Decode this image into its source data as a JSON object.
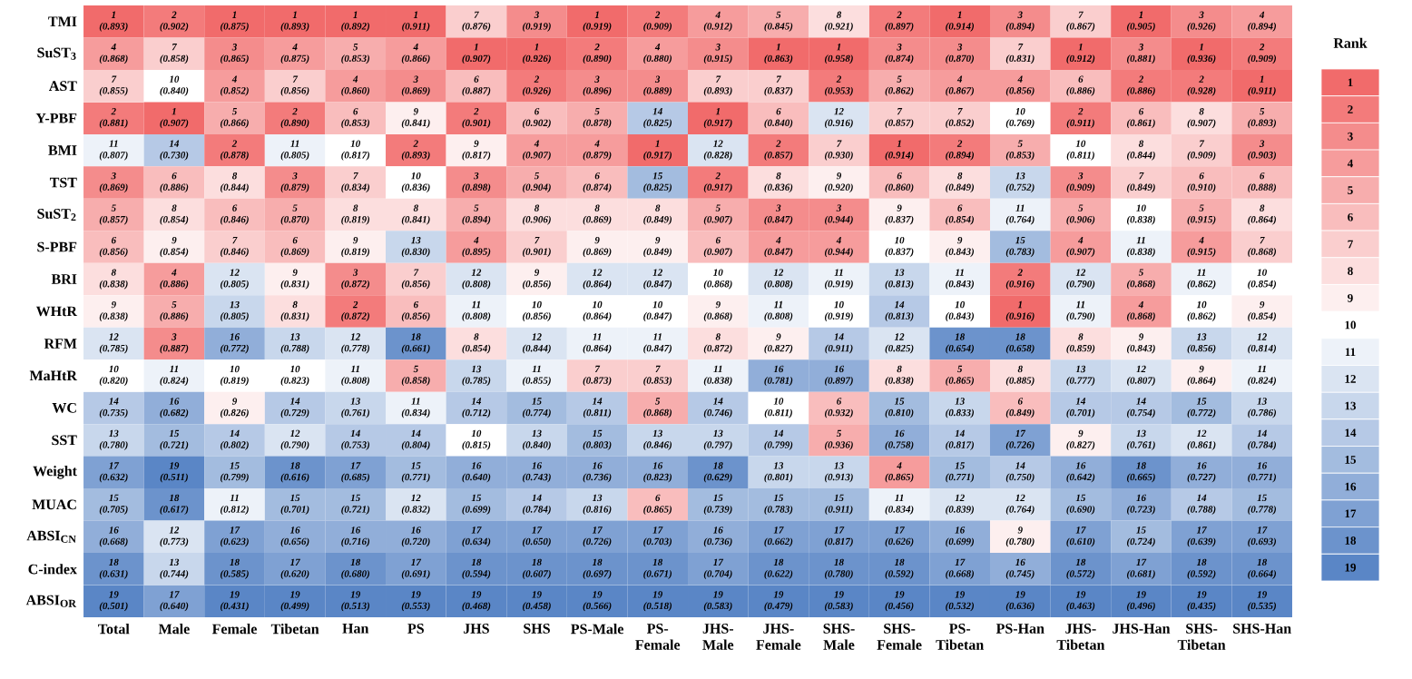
{
  "chart_data": {
    "type": "heatmap",
    "clabel": "Rank",
    "categories": [
      "Total",
      "Male",
      "Female",
      "Tibetan",
      "Han",
      "PS",
      "JHS",
      "SHS",
      "PS-Male",
      "PS-Female",
      "JHS-Male",
      "JHS-Female",
      "SHS-Male",
      "SHS-Female",
      "PS-Tibetan",
      "PS-Han",
      "JHS-Tibetan",
      "JHS-Han",
      "SHS-Tibetan",
      "SHS-Han"
    ],
    "y_categories": [
      "TMI",
      "SuST$_{3}$",
      "AST",
      "Y-PBF",
      "BMI",
      "TST",
      "SuST$_{2}$",
      "S-PBF",
      "BRI",
      "WHtR",
      "RFM",
      "MaHtR",
      "WC",
      "SST",
      "Weight",
      "MUAC",
      "ABSI$_{CN}$",
      "C-index",
      "ABSI$_{OR}$"
    ],
    "cells": [
      [
        1,
        2,
        1,
        1,
        1,
        1,
        7,
        3,
        1,
        2,
        4,
        5,
        8,
        2,
        1,
        3,
        7,
        1,
        3,
        4
      ],
      [
        4,
        7,
        3,
        4,
        5,
        4,
        1,
        1,
        2,
        4,
        3,
        1,
        1,
        3,
        3,
        7,
        1,
        3,
        1,
        2
      ],
      [
        7,
        10,
        4,
        7,
        4,
        3,
        6,
        2,
        3,
        3,
        7,
        7,
        2,
        5,
        4,
        4,
        6,
        2,
        2,
        1
      ],
      [
        2,
        1,
        5,
        2,
        6,
        9,
        2,
        6,
        5,
        14,
        1,
        6,
        12,
        7,
        7,
        10,
        2,
        6,
        8,
        5
      ],
      [
        11,
        14,
        2,
        11,
        10,
        2,
        9,
        4,
        4,
        1,
        12,
        2,
        7,
        1,
        2,
        5,
        10,
        8,
        7,
        3
      ],
      [
        3,
        6,
        8,
        3,
        7,
        10,
        3,
        5,
        6,
        15,
        2,
        8,
        9,
        6,
        8,
        13,
        3,
        7,
        6,
        6
      ],
      [
        5,
        8,
        6,
        5,
        8,
        8,
        5,
        8,
        8,
        8,
        5,
        3,
        3,
        9,
        6,
        11,
        5,
        10,
        5,
        8
      ],
      [
        6,
        9,
        7,
        6,
        9,
        13,
        4,
        7,
        9,
        9,
        6,
        4,
        4,
        10,
        9,
        15,
        4,
        11,
        4,
        7
      ],
      [
        8,
        4,
        12,
        9,
        3,
        7,
        12,
        9,
        12,
        12,
        10,
        12,
        11,
        13,
        11,
        2,
        12,
        5,
        11,
        10
      ],
      [
        9,
        5,
        13,
        8,
        2,
        6,
        11,
        10,
        10,
        10,
        9,
        11,
        10,
        14,
        10,
        1,
        11,
        4,
        10,
        9
      ],
      [
        12,
        3,
        16,
        13,
        12,
        18,
        8,
        12,
        11,
        11,
        8,
        9,
        14,
        12,
        18,
        18,
        8,
        9,
        13,
        12
      ],
      [
        10,
        11,
        10,
        10,
        11,
        5,
        13,
        11,
        7,
        7,
        11,
        16,
        16,
        8,
        5,
        8,
        13,
        12,
        9,
        11
      ],
      [
        14,
        16,
        9,
        14,
        13,
        11,
        14,
        15,
        14,
        5,
        14,
        10,
        6,
        15,
        13,
        6,
        14,
        14,
        15,
        13
      ],
      [
        13,
        15,
        14,
        12,
        14,
        14,
        10,
        13,
        15,
        13,
        13,
        14,
        5,
        16,
        14,
        17,
        9,
        13,
        12,
        14
      ],
      [
        17,
        19,
        15,
        18,
        17,
        15,
        16,
        16,
        16,
        16,
        18,
        13,
        13,
        4,
        15,
        14,
        16,
        18,
        16,
        16
      ],
      [
        15,
        18,
        11,
        15,
        15,
        12,
        15,
        14,
        13,
        6,
        15,
        15,
        15,
        11,
        12,
        12,
        15,
        16,
        14,
        15
      ],
      [
        16,
        12,
        17,
        16,
        16,
        16,
        17,
        17,
        17,
        17,
        16,
        17,
        17,
        17,
        16,
        9,
        17,
        15,
        17,
        17
      ],
      [
        18,
        13,
        18,
        17,
        18,
        17,
        18,
        18,
        18,
        18,
        17,
        18,
        18,
        18,
        17,
        16,
        18,
        17,
        18,
        18
      ],
      [
        19,
        17,
        19,
        19,
        19,
        19,
        19,
        19,
        19,
        19,
        19,
        19,
        19,
        19,
        19,
        19,
        19,
        19,
        19,
        19
      ]
    ],
    "cell_labels": [
      [
        "1 (0.893)",
        "2 (0.902)",
        "1 (0.875)",
        "1 (0.893)",
        "1 (0.892)",
        "1 (0.911)",
        "7 (0.876)",
        "3 (0.919)",
        "1 (0.919)",
        "2 (0.909)",
        "4 (0.912)",
        "5 (0.845)",
        "8 (0.921)",
        "2 (0.897)",
        "1 (0.914)",
        "3 (0.894)",
        "7 (0.867)",
        "1 (0.905)",
        "3 (0.926)",
        "4 (0.894)"
      ],
      [
        "4 (0.868)",
        "7 (0.858)",
        "3 (0.865)",
        "4 (0.875)",
        "5 (0.853)",
        "4 (0.866)",
        "1 (0.907)",
        "1 (0.926)",
        "2 (0.890)",
        "4 (0.880)",
        "3 (0.915)",
        "1 (0.863)",
        "1 (0.958)",
        "3 (0.874)",
        "3 (0.870)",
        "7 (0.831)",
        "1 (0.912)",
        "3 (0.881)",
        "1 (0.936)",
        "2 (0.909)"
      ],
      [
        "7 (0.855)",
        "10 (0.840)",
        "4 (0.852)",
        "7 (0.856)",
        "4 (0.860)",
        "3 (0.869)",
        "6 (0.887)",
        "2 (0.926)",
        "3 (0.896)",
        "3 (0.889)",
        "7 (0.893)",
        "7 (0.837)",
        "2 (0.953)",
        "5 (0.862)",
        "4 (0.867)",
        "4 (0.856)",
        "6 (0.886)",
        "2 (0.886)",
        "2 (0.928)",
        "1 (0.911)"
      ],
      [
        "2 (0.881)",
        "1 (0.907)",
        "5 (0.866)",
        "2 (0.890)",
        "6 (0.853)",
        "9 (0.841)",
        "2 (0.901)",
        "6 (0.902)",
        "5 (0.878)",
        "14 (0.825)",
        "1 (0.917)",
        "6 (0.840)",
        "12 (0.916)",
        "7 (0.857)",
        "7 (0.852)",
        "10 (0.769)",
        "2 (0.911)",
        "6 (0.861)",
        "8 (0.907)",
        "5 (0.893)"
      ],
      [
        "11 (0.807)",
        "14 (0.730)",
        "2 (0.878)",
        "11 (0.805)",
        "10 (0.817)",
        "2 (0.893)",
        "9 (0.817)",
        "4 (0.907)",
        "4 (0.879)",
        "1 (0.917)",
        "12 (0.828)",
        "2 (0.857)",
        "7 (0.930)",
        "1 (0.914)",
        "2 (0.894)",
        "5 (0.853)",
        "10 (0.811)",
        "8 (0.844)",
        "7 (0.909)",
        "3 (0.903)"
      ],
      [
        "3 (0.869)",
        "6 (0.886)",
        "8 (0.844)",
        "3 (0.879)",
        "7 (0.834)",
        "10 (0.836)",
        "3 (0.898)",
        "5 (0.904)",
        "6 (0.874)",
        "15 (0.825)",
        "2 (0.917)",
        "8 (0.836)",
        "9 (0.920)",
        "6 (0.860)",
        "8 (0.849)",
        "13 (0.752)",
        "3 (0.909)",
        "7 (0.849)",
        "6 (0.910)",
        "6 (0.888)"
      ],
      [
        "5 (0.857)",
        "8 (0.854)",
        "6 (0.846)",
        "5 (0.870)",
        "8 (0.819)",
        "8 (0.841)",
        "5 (0.894)",
        "8 (0.906)",
        "8 (0.869)",
        "8 (0.849)",
        "5 (0.907)",
        "3 (0.847)",
        "3 (0.944)",
        "9 (0.837)",
        "6 (0.854)",
        "11 (0.764)",
        "5 (0.906)",
        "10 (0.838)",
        "5 (0.915)",
        "8 (0.864)"
      ],
      [
        "6 (0.856)",
        "9 (0.854)",
        "7 (0.846)",
        "6 (0.869)",
        "9 (0.819)",
        "13 (0.830)",
        "4 (0.895)",
        "7 (0.901)",
        "9 (0.869)",
        "9 (0.849)",
        "6 (0.907)",
        "4 (0.847)",
        "4 (0.944)",
        "10 (0.837)",
        "9 (0.843)",
        "15 (0.783)",
        "4 (0.907)",
        "11 (0.838)",
        "4 (0.915)",
        "7 (0.868)"
      ],
      [
        "8 (0.838)",
        "4 (0.886)",
        "12 (0.805)",
        "9 (0.831)",
        "3 (0.872)",
        "7 (0.856)",
        "12 (0.808)",
        "9 (0.856)",
        "12 (0.864)",
        "12 (0.847)",
        "10 (0.868)",
        "12 (0.808)",
        "11 (0.919)",
        "13 (0.813)",
        "11 (0.843)",
        "2 (0.916)",
        "12 (0.790)",
        "5 (0.868)",
        "11 (0.862)",
        "10 (0.854)"
      ],
      [
        "9 (0.838)",
        "5 (0.886)",
        "13 (0.805)",
        "8 (0.831)",
        "2 (0.872)",
        "6 (0.856)",
        "11 (0.808)",
        "10 (0.856)",
        "10 (0.864)",
        "10 (0.847)",
        "9 (0.868)",
        "11 (0.808)",
        "10 (0.919)",
        "14 (0.813)",
        "10 (0.843)",
        "1 (0.916)",
        "11 (0.790)",
        "4 (0.868)",
        "10 (0.862)",
        "9 (0.854)"
      ],
      [
        "12 (0.785)",
        "3 (0.887)",
        "16 (0.772)",
        "13 (0.788)",
        "12 (0.778)",
        "18 (0.661)",
        "8 (0.854)",
        "12 (0.844)",
        "11 (0.864)",
        "11 (0.847)",
        "8 (0.872)",
        "9 (0.827)",
        "14 (0.911)",
        "12 (0.825)",
        "18 (0.654)",
        "18 (0.658)",
        "8 (0.859)",
        "9 (0.843)",
        "13 (0.856)",
        "12 (0.814)"
      ],
      [
        "10 (0.820)",
        "11 (0.824)",
        "10 (0.819)",
        "10 (0.823)",
        "11 (0.808)",
        "5 (0.858)",
        "13 (0.785)",
        "11 (0.855)",
        "7 (0.873)",
        "7 (0.853)",
        "11 (0.838)",
        "16 (0.781)",
        "16 (0.897)",
        "8 (0.838)",
        "5 (0.865)",
        "8 (0.885)",
        "13 (0.777)",
        "12 (0.807)",
        "9 (0.864)",
        "11 (0.824)"
      ],
      [
        "14 (0.735)",
        "16 (0.682)",
        "9 (0.826)",
        "14 (0.729)",
        "13 (0.761)",
        "11 (0.834)",
        "14 (0.712)",
        "15 (0.774)",
        "14 (0.811)",
        "5 (0.868)",
        "14 (0.746)",
        "10 (0.811)",
        "6 (0.932)",
        "15 (0.810)",
        "13 (0.833)",
        "6 (0.849)",
        "14 (0.701)",
        "14 (0.754)",
        "15 (0.772)",
        "13 (0.786)"
      ],
      [
        "13 (0.780)",
        "15 (0.721)",
        "14 (0.802)",
        "12 (0.790)",
        "14 (0.753)",
        "14 (0.804)",
        "10 (0.815)",
        "13 (0.840)",
        "15 (0.803)",
        "13 (0.846)",
        "13 (0.797)",
        "14 (0.799)",
        "5 (0.936)",
        "16 (0.758)",
        "14 (0.817)",
        "17 (0.726)",
        "9 (0.827)",
        "13 (0.761)",
        "12 (0.861)",
        "14 (0.784)"
      ],
      [
        "17 (0.632)",
        "19 (0.511)",
        "15 (0.799)",
        "18 (0.616)",
        "17 (0.685)",
        "15 (0.771)",
        "16 (0.640)",
        "16 (0.743)",
        "16 (0.736)",
        "16 (0.823)",
        "18 (0.629)",
        "13 (0.801)",
        "13 (0.913)",
        "4 (0.865)",
        "15 (0.771)",
        "14 (0.750)",
        "16 (0.642)",
        "18 (0.665)",
        "16 (0.727)",
        "16 (0.771)"
      ],
      [
        "15 (0.705)",
        "18 (0.617)",
        "11 (0.812)",
        "15 (0.701)",
        "15 (0.721)",
        "12 (0.832)",
        "15 (0.699)",
        "14 (0.784)",
        "13 (0.816)",
        "6 (0.865)",
        "15 (0.739)",
        "15 (0.783)",
        "15 (0.911)",
        "11 (0.834)",
        "12 (0.839)",
        "12 (0.764)",
        "15 (0.690)",
        "16 (0.723)",
        "14 (0.788)",
        "15 (0.778)"
      ],
      [
        "16 (0.668)",
        "12 (0.773)",
        "17 (0.623)",
        "16 (0.656)",
        "16 (0.716)",
        "16 (0.720)",
        "17 (0.634)",
        "17 (0.650)",
        "17 (0.726)",
        "17 (0.703)",
        "16 (0.736)",
        "17 (0.662)",
        "17 (0.817)",
        "17 (0.626)",
        "16 (0.699)",
        "9 (0.780)",
        "17 (0.610)",
        "15 (0.724)",
        "17 (0.639)",
        "17 (0.693)"
      ],
      [
        "18 (0.631)",
        "13 (0.744)",
        "18 (0.585)",
        "17 (0.620)",
        "18 (0.680)",
        "17 (0.691)",
        "18 (0.594)",
        "18 (0.607)",
        "18 (0.697)",
        "18 (0.671)",
        "17 (0.704)",
        "18 (0.622)",
        "18 (0.780)",
        "18 (0.592)",
        "17 (0.668)",
        "16 (0.745)",
        "18 (0.572)",
        "17 (0.681)",
        "18 (0.592)",
        "18 (0.664)"
      ],
      [
        "19 (0.501)",
        "17 (0.640)",
        "19 (0.431)",
        "19 (0.499)",
        "19 (0.513)",
        "19 (0.553)",
        "19 (0.468)",
        "19 (0.458)",
        "19 (0.566)",
        "19 (0.518)",
        "19 (0.583)",
        "19 (0.479)",
        "19 (0.583)",
        "19 (0.456)",
        "19 (0.532)",
        "19 (0.636)",
        "19 (0.463)",
        "19 (0.496)",
        "19 (0.435)",
        "19 (0.535)"
      ]
    ],
    "clim": [
      0.5,
      19.5
    ],
    "cticks": [
      1,
      2,
      3,
      4,
      5,
      6,
      7,
      8,
      9,
      10,
      11,
      12,
      13,
      14,
      15,
      16,
      17,
      18,
      19
    ]
  }
}
